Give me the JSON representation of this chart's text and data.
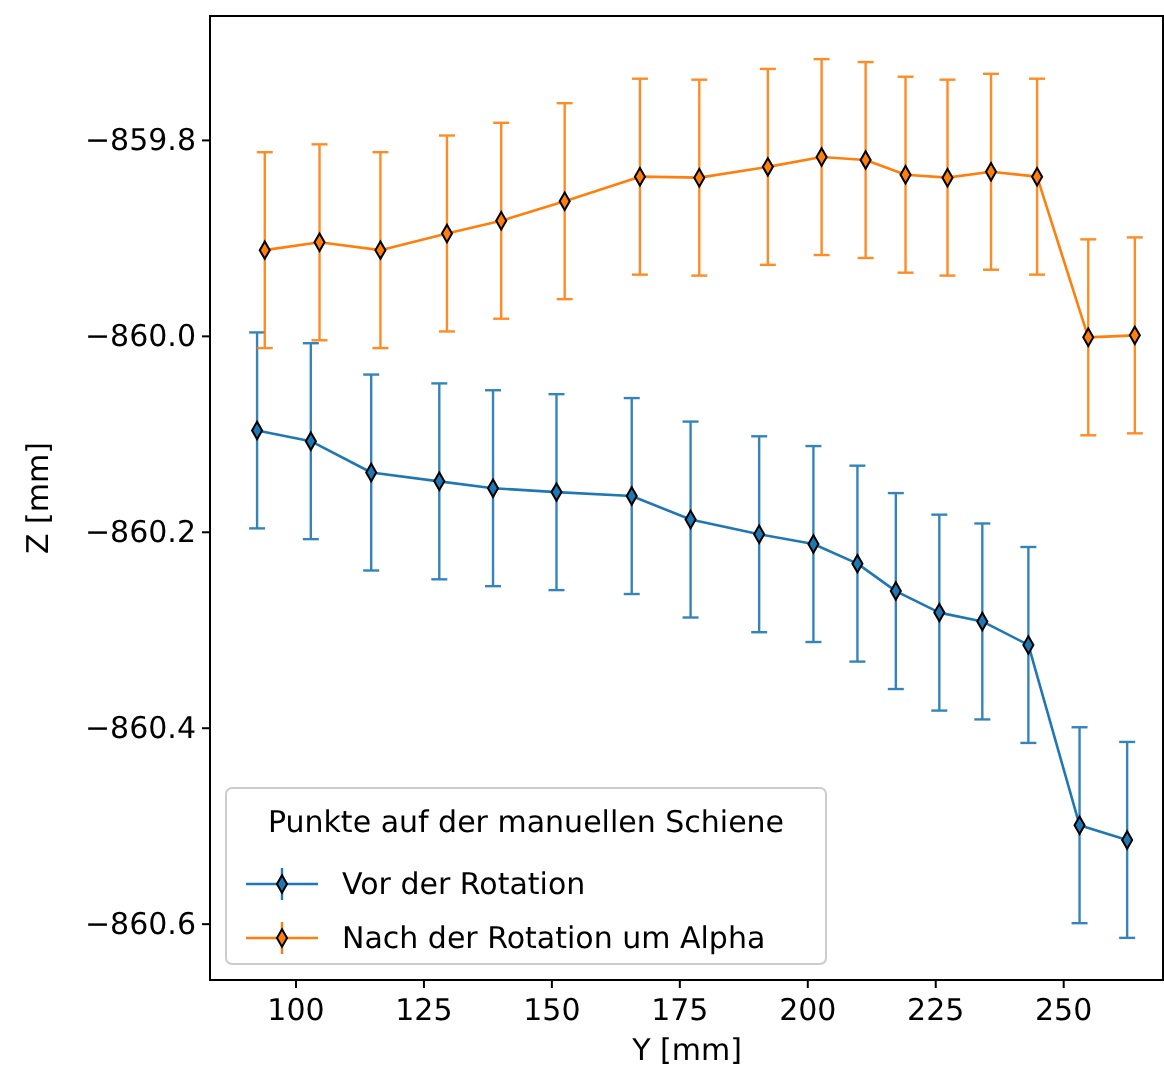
{
  "chart_data": {
    "type": "line",
    "xlabel": "Y [mm]",
    "ylabel": "Z [mm]",
    "legend_title": "Punkte auf der manuellen Schiene",
    "legend": "bottom left",
    "marker": "diamond",
    "grid": false,
    "xlim": [
      83.2,
      269.6
    ],
    "xticks": [
      100,
      125,
      150,
      175,
      200,
      225,
      250
    ],
    "ylim": [
      -860.657,
      -859.673
    ],
    "yticks": [
      {
        "value": -859.8,
        "label": "−859.8"
      },
      {
        "value": -860.0,
        "label": "−860.0"
      },
      {
        "value": -860.2,
        "label": "−860.2"
      },
      {
        "value": -860.4,
        "label": "−860.4"
      },
      {
        "value": -860.6,
        "label": "−860.6"
      }
    ],
    "series": [
      {
        "name": "Vor der Rotation",
        "color": "#1f77b4",
        "x": [
          92.4,
          102.9,
          114.7,
          128.0,
          138.5,
          150.9,
          165.6,
          177.1,
          190.5,
          201.1,
          209.7,
          217.2,
          225.7,
          234.1,
          243.1,
          253.1,
          262.4
        ],
        "values": [
          -860.096,
          -860.107,
          -860.139,
          -860.148,
          -860.155,
          -860.159,
          -860.163,
          -860.187,
          -860.202,
          -860.212,
          -860.232,
          -860.26,
          -860.282,
          -860.291,
          -860.315,
          -860.499,
          -860.514
        ],
        "errors": [
          0.1,
          0.1,
          0.1,
          0.1,
          0.1,
          0.1,
          0.1,
          0.1,
          0.1,
          0.1,
          0.1,
          0.1,
          0.1,
          0.1,
          0.1,
          0.1,
          0.1
        ]
      },
      {
        "name": "Nach der Rotation um Alpha",
        "color": "#ff7f0e",
        "x": [
          93.9,
          104.6,
          116.5,
          129.5,
          140.1,
          152.5,
          167.2,
          178.8,
          192.2,
          202.7,
          211.3,
          219.1,
          227.3,
          235.8,
          244.8,
          254.8,
          263.9
        ],
        "values": [
          -859.912,
          -859.904,
          -859.912,
          -859.895,
          -859.882,
          -859.862,
          -859.837,
          -859.838,
          -859.827,
          -859.817,
          -859.82,
          -859.835,
          -859.838,
          -859.832,
          -859.837,
          -860.001,
          -859.999
        ],
        "errors": [
          0.1,
          0.1,
          0.1,
          0.1,
          0.1,
          0.1,
          0.1,
          0.1,
          0.1,
          0.1,
          0.1,
          0.1,
          0.1,
          0.1,
          0.1,
          0.1,
          0.1
        ]
      }
    ]
  }
}
